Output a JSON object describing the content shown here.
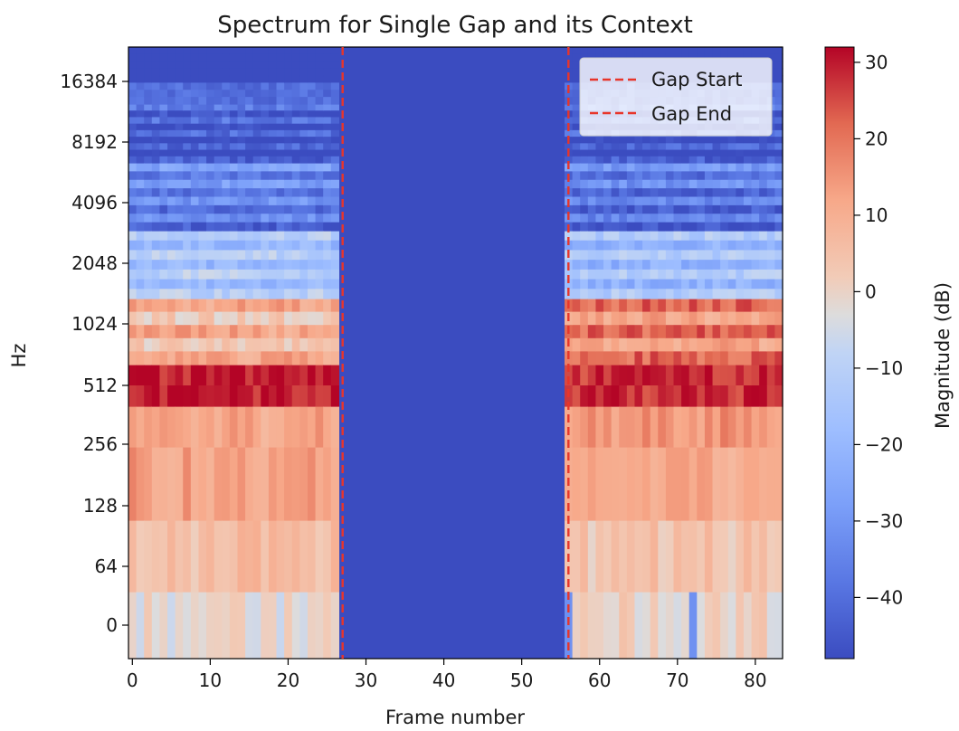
{
  "chart_data": {
    "type": "heatmap",
    "title": "Spectrum for Single Gap and its Context",
    "xlabel": "Frame number",
    "ylabel": "Hz",
    "x_ticks": [
      0,
      10,
      20,
      30,
      40,
      50,
      60,
      70,
      80
    ],
    "y_ticks": [
      "0",
      "64",
      "128",
      "256",
      "512",
      "1024",
      "2048",
      "4096",
      "8192",
      "16384"
    ],
    "xlim": [
      -0.5,
      83.5
    ],
    "frames": 84,
    "y_scale": "log2 (symlog)",
    "gap_start": 27,
    "gap_end": 56,
    "legend": {
      "position": "top-right",
      "entries": [
        {
          "label": "Gap Start",
          "color": "#e8352a",
          "style": "dashed"
        },
        {
          "label": "Gap End",
          "color": "#e8352a",
          "style": "dashed"
        }
      ]
    },
    "colorbar": {
      "label": "Magnitude (dB)",
      "range": [
        -48,
        32
      ],
      "ticks": [
        30,
        20,
        10,
        0,
        -10,
        -20,
        -30,
        -40
      ],
      "tick_labels": [
        "30",
        "20",
        "10",
        "0",
        "−10",
        "−20",
        "−30",
        "−40"
      ],
      "colormap": "coolwarm"
    },
    "gap_fill_db": -48,
    "band_profile_db": [
      {
        "band": "0",
        "left": -2,
        "right": 0
      },
      {
        "band": "64",
        "left": 6,
        "right": 4
      },
      {
        "band": "128",
        "left": 13,
        "right": 12
      },
      {
        "band": "256",
        "left": 12,
        "right": 15
      },
      {
        "band": "512",
        "left": 30,
        "right": 28
      },
      {
        "band": "1024",
        "left": 8,
        "right": 18
      },
      {
        "band": "2048",
        "left": -14,
        "right": -16
      },
      {
        "band": "4096",
        "left": -30,
        "right": -33
      },
      {
        "band": "8192",
        "left": -40,
        "right": -40
      },
      {
        "band": "16384",
        "left": -48,
        "right": -48
      }
    ]
  }
}
